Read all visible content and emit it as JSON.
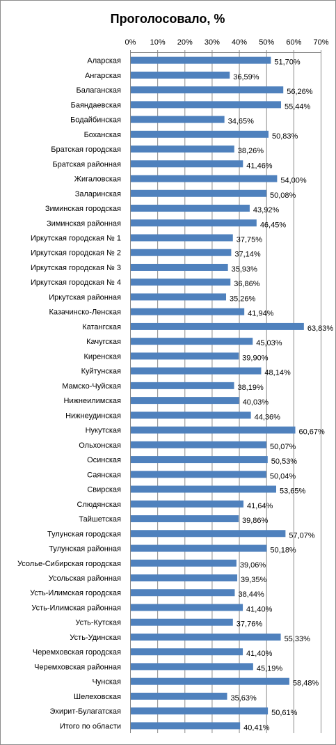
{
  "chart_data": {
    "type": "bar",
    "orientation": "horizontal",
    "title": "Проголосовало, %",
    "xlabel": "",
    "ylabel": "",
    "xlim": [
      0,
      70
    ],
    "ticks": [
      0,
      10,
      20,
      30,
      40,
      50,
      60,
      70
    ],
    "tick_suffix": "%",
    "axis_position": "top",
    "grid": true,
    "bar_color": "#4f81bd",
    "categories": [
      "Аларская",
      "Ангарская",
      "Балаганская",
      "Баяндаевская",
      "Бодайбинская",
      "Боханская",
      "Братская городская",
      "Братская районная",
      "Жигаловская",
      "Заларинская",
      "Зиминская городская",
      "Зиминская районная",
      "Иркутская городская № 1",
      "Иркутская городская № 2",
      "Иркутская городская № 3",
      "Иркутская городская № 4",
      "Иркутская районная",
      "Казачинско-Ленская",
      "Катангская",
      "Качугская",
      "Киренская",
      "Куйтунская",
      "Мамско-Чуйская",
      "Нижнеилимская",
      "Нижнеудинская",
      "Нукутская",
      "Ольхонская",
      "Осинская",
      "Саянская",
      "Свирская",
      "Слюдянская",
      "Тайшетская",
      "Тулунская городская",
      "Тулунская районная",
      "Усолье-Сибирская городская",
      "Усольская районная",
      "Усть-Илимская городская",
      "Усть-Илимская районная",
      "Усть-Кутская",
      "Усть-Удинская",
      "Черемховская городская",
      "Черемховская районная",
      "Чунская",
      "Шелеховская",
      "Эхирит-Булагатская",
      "Итого по области"
    ],
    "values": [
      51.7,
      36.59,
      56.26,
      55.44,
      34.65,
      50.83,
      38.26,
      41.46,
      54.0,
      50.08,
      43.92,
      46.45,
      37.75,
      37.14,
      35.93,
      36.86,
      35.26,
      41.94,
      63.83,
      45.03,
      39.9,
      48.14,
      38.19,
      40.03,
      44.36,
      60.67,
      50.07,
      50.53,
      50.04,
      53.65,
      41.64,
      39.86,
      57.07,
      50.18,
      39.06,
      39.35,
      38.44,
      41.4,
      37.76,
      55.33,
      41.4,
      45.19,
      58.48,
      35.63,
      50.61,
      40.41
    ],
    "data_labels": [
      "51,70%",
      "36,59%",
      "56,26%",
      "55,44%",
      "34,65%",
      "50,83%",
      "38,26%",
      "41,46%",
      "54,00%",
      "50,08%",
      "43,92%",
      "46,45%",
      "37,75%",
      "37,14%",
      "35,93%",
      "36,86%",
      "35,26%",
      "41,94%",
      "63,83%",
      "45,03%",
      "39,90%",
      "48,14%",
      "38,19%",
      "40,03%",
      "44,36%",
      "60,67%",
      "50,07%",
      "50,53%",
      "50,04%",
      "53,65%",
      "41,64%",
      "39,86%",
      "57,07%",
      "50,18%",
      "39,06%",
      "39,35%",
      "38,44%",
      "41,40%",
      "37,76%",
      "55,33%",
      "41,40%",
      "45,19%",
      "58,48%",
      "35,63%",
      "50,61%",
      "40,41%"
    ]
  }
}
